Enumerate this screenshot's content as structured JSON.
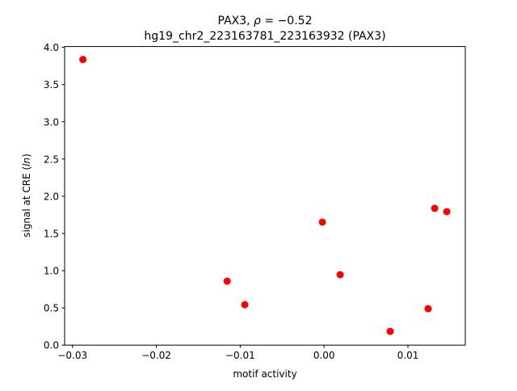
{
  "chart_data": {
    "type": "scatter",
    "title_line1_prefix": "PAX3, ",
    "title_line1_rho": "ρ",
    "title_line1_value": " = −0.52",
    "title_line2": "hg19_chr2_223163781_223163932 (PAX3)",
    "xlabel": "motif activity",
    "ylabel_prefix": "signal at CRE (",
    "ylabel_italic": "ln",
    "ylabel_suffix": ")",
    "xlim": [
      -0.03094,
      0.01684
    ],
    "ylim": [
      0,
      4.011
    ],
    "xticks": [
      -0.03,
      -0.02,
      -0.01,
      0.0,
      0.01
    ],
    "xtick_labels": [
      "−0.03",
      "−0.02",
      "−0.01",
      "0.00",
      "0.01"
    ],
    "yticks": [
      0,
      0.5,
      1,
      1.5,
      2,
      2.5,
      3,
      3.5,
      4
    ],
    "ytick_labels": [
      "0.0",
      "0.5",
      "1.0",
      "1.5",
      "2.0",
      "2.5",
      "3.0",
      "3.5",
      "4.0"
    ],
    "grid": false,
    "marker_color": "#ff0000",
    "points": [
      {
        "x": -0.02876,
        "y": 3.837
      },
      {
        "x": -0.01156,
        "y": 0.859
      },
      {
        "x": -0.00945,
        "y": 0.543
      },
      {
        "x": -0.0002,
        "y": 1.652
      },
      {
        "x": 0.00192,
        "y": 0.946
      },
      {
        "x": 0.00788,
        "y": 0.185
      },
      {
        "x": 0.01241,
        "y": 0.489
      },
      {
        "x": 0.01319,
        "y": 1.837
      },
      {
        "x": 0.01463,
        "y": 1.793
      }
    ]
  }
}
